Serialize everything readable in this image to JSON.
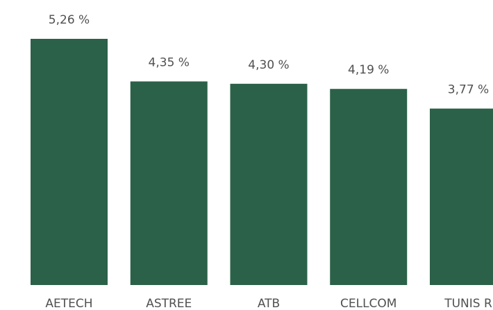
{
  "chart_data": {
    "type": "bar",
    "categories": [
      "AETECH",
      "ASTREE",
      "ATB",
      "CELLCOM",
      "TUNIS R"
    ],
    "values": [
      5.26,
      4.35,
      4.3,
      4.19,
      3.77
    ],
    "value_labels": [
      "5,26 %",
      "4,35 %",
      "4,30 %",
      "4,19 %",
      "3,77 %"
    ],
    "color": "#2b6148"
  }
}
